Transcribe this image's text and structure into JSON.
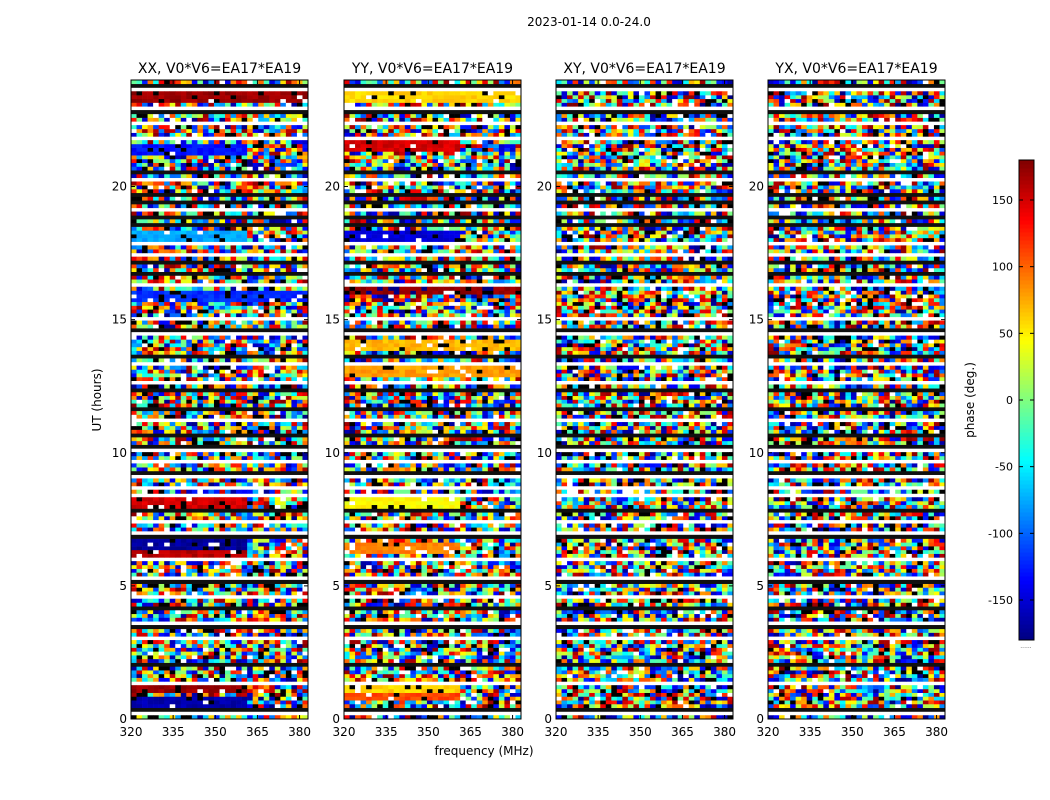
{
  "figure_title": "2023-01-14 0.0-24.0",
  "chart_data": {
    "type": "heatmap",
    "title": "2023-01-14 0.0-24.0",
    "xlabel": "frequency (MHz)",
    "ylabel": "UT (hours)",
    "xlim": [
      320,
      383
    ],
    "ylim": [
      0,
      24
    ],
    "xticks": [
      320,
      335,
      350,
      365,
      380
    ],
    "yticks": [
      0,
      5,
      10,
      15,
      20
    ],
    "colorbar": {
      "label": "phase (deg.)",
      "range": [
        -180,
        180
      ],
      "ticks": [
        -150,
        -100,
        -50,
        0,
        50,
        100,
        150
      ],
      "colormap": "jet",
      "extra_label": "......"
    },
    "panels": [
      {
        "title": "XX, V0*V6=EA17*EA19",
        "strong_bands": [
          {
            "ut": 0.65,
            "phase": -165,
            "freq_end": 361
          },
          {
            "ut": 1.2,
            "phase": 170,
            "freq_end": 361
          },
          {
            "ut": 6.3,
            "phase": 160,
            "freq_end": 361
          },
          {
            "ut": 6.5,
            "phase": -170,
            "freq_end": 361
          },
          {
            "ut": 8.1,
            "phase": 150,
            "freq_end": 361
          },
          {
            "ut": 15.9,
            "phase": -120,
            "freq_end": 383
          },
          {
            "ut": 18.1,
            "phase": -75,
            "freq_end": 361
          },
          {
            "ut": 21.4,
            "phase": -130,
            "freq_end": 361
          },
          {
            "ut": 23.3,
            "phase": 170,
            "freq_end": 383
          }
        ]
      },
      {
        "title": "YY, V0*V6=EA17*EA19",
        "strong_bands": [
          {
            "ut": 0.9,
            "phase": 110,
            "freq_end": 361
          },
          {
            "ut": 1.2,
            "phase": 60,
            "freq_end": 361
          },
          {
            "ut": 6.4,
            "phase": 90,
            "freq_end": 361
          },
          {
            "ut": 8.1,
            "phase": 45,
            "freq_end": 361
          },
          {
            "ut": 13.0,
            "phase": 80,
            "freq_end": 383
          },
          {
            "ut": 14.1,
            "phase": 70,
            "freq_end": 383
          },
          {
            "ut": 16.1,
            "phase": 175,
            "freq_end": 383
          },
          {
            "ut": 18.1,
            "phase": -150,
            "freq_end": 361
          },
          {
            "ut": 21.5,
            "phase": 150,
            "freq_end": 361
          },
          {
            "ut": 23.3,
            "phase": 60,
            "freq_end": 383
          }
        ]
      },
      {
        "title": "XY, V0*V6=EA17*EA19",
        "strong_bands": []
      },
      {
        "title": "YX, V0*V6=EA17*EA19",
        "strong_bands": []
      }
    ],
    "gaps_ut": [
      0.15,
      1.35,
      3.1,
      3.65,
      4.6,
      5.35,
      6.05,
      7.0,
      7.45,
      8.4,
      8.65,
      9.05,
      9.6,
      10.05,
      11.25,
      12.7,
      13.4,
      14.4,
      15.1,
      16.3,
      17.4,
      17.9,
      19.1,
      20.2,
      21.75,
      22.4,
      23.0,
      23.6
    ],
    "dark_rows_ut": [
      0.3,
      2.1,
      3.5,
      4.2,
      5.1,
      6.8,
      7.9,
      9.3,
      10.3,
      10.6,
      11.6,
      12.4,
      13.6,
      14.6,
      16.7,
      17.2,
      18.5,
      18.8,
      19.4,
      19.7,
      20.5,
      22.8,
      23.8
    ]
  }
}
